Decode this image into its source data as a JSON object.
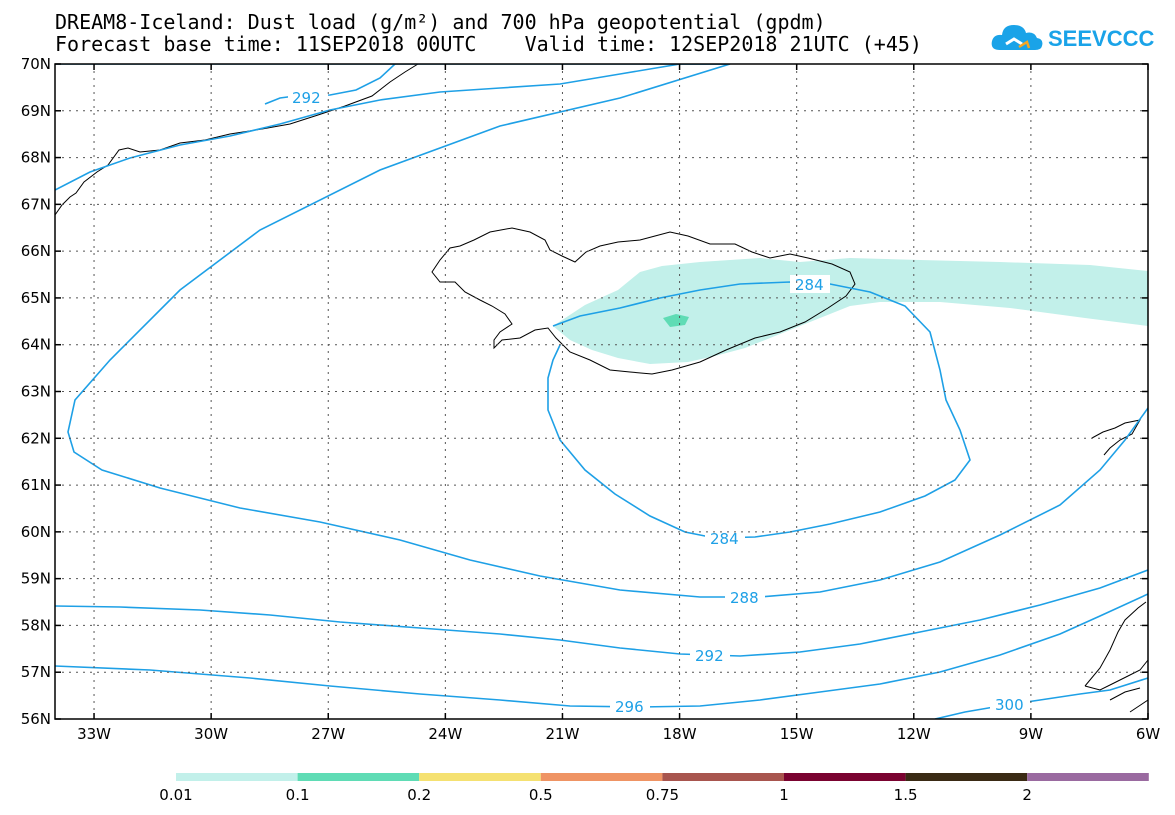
{
  "title": {
    "line1": "DREAM8-Iceland: Dust load (g/m²) and 700 hPa geopotential (gpdm)",
    "line2": "Forecast base time: 11SEP2018 00UTC    Valid time: 12SEP2018 21UTC (+45)"
  },
  "logo": {
    "text": "SEEVCCC"
  },
  "axes": {
    "lat_labels": [
      "70N",
      "69N",
      "68N",
      "67N",
      "66N",
      "65N",
      "64N",
      "63N",
      "62N",
      "61N",
      "60N",
      "59N",
      "58N",
      "57N",
      "56N"
    ],
    "lon_labels": [
      "33W",
      "30W",
      "27W",
      "24W",
      "21W",
      "18W",
      "15W",
      "12W",
      "9W",
      "6W"
    ]
  },
  "contours": {
    "labels": [
      "292",
      "284",
      "284",
      "288",
      "292",
      "296",
      "300"
    ],
    "color": "#1ea0e6"
  },
  "colorbar": {
    "labels": [
      "0.01",
      "0.1",
      "0.2",
      "0.5",
      "0.75",
      "1",
      "1.5",
      "2"
    ],
    "colors": [
      "#c2f0ea",
      "#5fdcb5",
      "#f5e171",
      "#ef9464",
      "#a8554e",
      "#7a0330",
      "#3a2a14",
      "#9a6aa0"
    ]
  }
}
